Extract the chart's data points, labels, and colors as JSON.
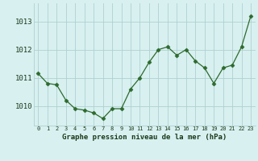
{
  "x": [
    0,
    1,
    2,
    3,
    4,
    5,
    6,
    7,
    8,
    9,
    10,
    11,
    12,
    13,
    14,
    15,
    16,
    17,
    18,
    19,
    20,
    21,
    22,
    23
  ],
  "y": [
    1011.15,
    1010.8,
    1010.75,
    1010.2,
    1009.9,
    1009.85,
    1009.75,
    1009.55,
    1009.9,
    1009.9,
    1010.6,
    1011.0,
    1011.55,
    1012.0,
    1012.1,
    1011.8,
    1012.0,
    1011.6,
    1011.35,
    1010.8,
    1011.35,
    1011.45,
    1012.1,
    1013.2
  ],
  "line_color": "#2d6a2d",
  "marker": "D",
  "marker_size": 2.5,
  "bg_color": "#d8f0f0",
  "grid_color": "#b0d0d0",
  "xlabel": "Graphe pression niveau de la mer (hPa)",
  "xlabel_color": "#1a3a1a",
  "tick_color": "#1a3a1a",
  "ytick_labels": [
    "1010",
    "1011",
    "1012",
    "1013"
  ],
  "yticks": [
    1010,
    1011,
    1012,
    1013
  ],
  "ylim": [
    1009.3,
    1013.65
  ],
  "xlim": [
    -0.5,
    23.5
  ]
}
